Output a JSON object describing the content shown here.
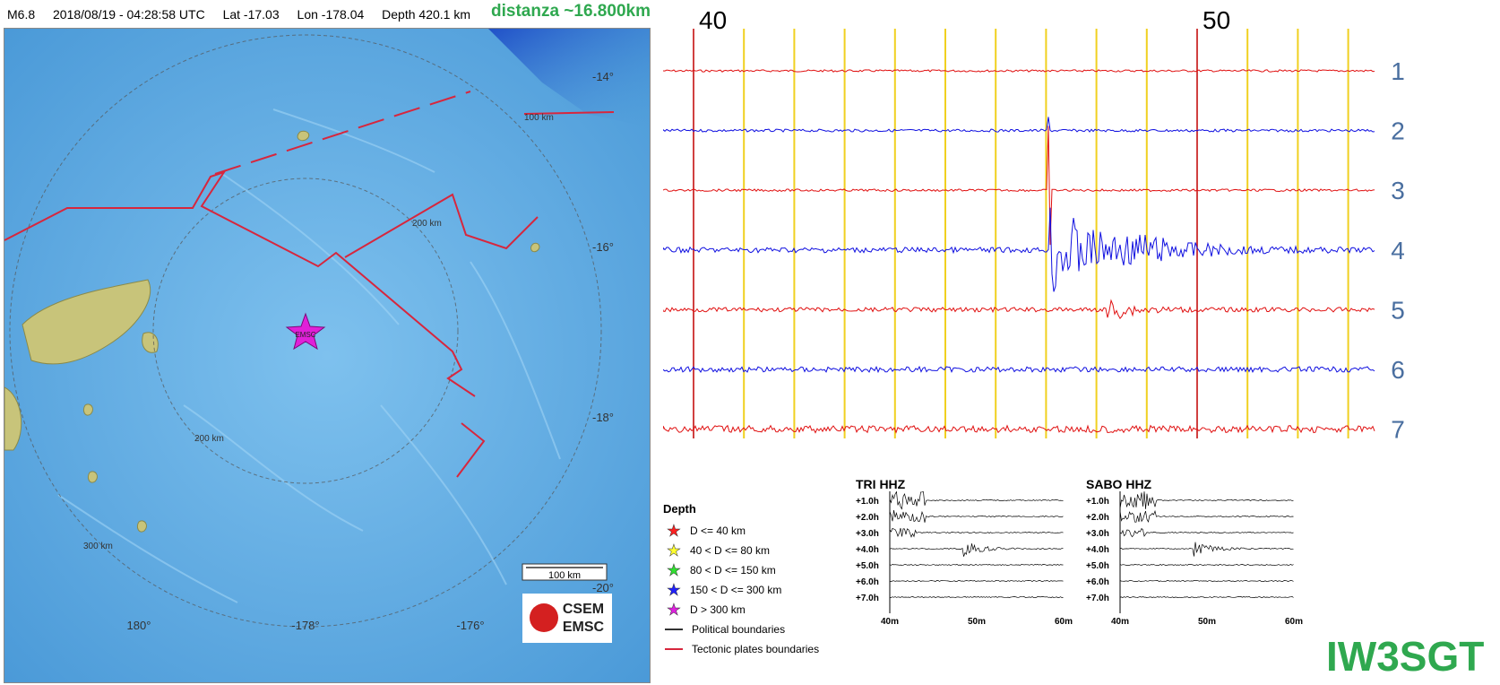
{
  "header": {
    "magnitude": "M6.8",
    "datetime": "2018/08/19 - 04:28:58 UTC",
    "lat": "Lat -17.03",
    "lon": "Lon -178.04",
    "depth": "Depth 420.1 km",
    "distance": "distanza ~16.800km"
  },
  "map": {
    "lat_labels": [
      "-14°",
      "-16°",
      "-18°",
      "-20°"
    ],
    "lon_labels": [
      "180°",
      "-178°",
      "-176°"
    ],
    "ring_labels": [
      "100 km",
      "200 km",
      "200 km",
      "300 km"
    ],
    "epicenter_label": "EMSC",
    "scale_label": "100 km",
    "logo_top": "CSEM",
    "logo_bottom": "EMSC",
    "colors": {
      "ocean": "#5aa8e0",
      "tectonic": "#d7263d",
      "epicenter": "#e020d8"
    }
  },
  "seismogram": {
    "minute_labels": [
      "40",
      "50"
    ],
    "trace_labels": [
      "1",
      "2",
      "3",
      "4",
      "5",
      "6",
      "7"
    ],
    "colors": {
      "red": "#e01010",
      "blue": "#1010e0",
      "grid": "#f0d020",
      "major": "#c00000"
    }
  },
  "legend": {
    "title": "Depth",
    "items": [
      {
        "label": "D <= 40 km",
        "color": "#ff2020"
      },
      {
        "label": "40 < D <= 80 km",
        "color": "#ffff30"
      },
      {
        "label": "80 < D <= 150 km",
        "color": "#30e030"
      },
      {
        "label": "150 < D <= 300 km",
        "color": "#2020ff"
      },
      {
        "label": "D > 300 km",
        "color": "#e020e0"
      }
    ],
    "boundaries": [
      {
        "label": "Political boundaries",
        "color": "#333333"
      },
      {
        "label": "Tectonic plates boundaries",
        "color": "#d7263d"
      }
    ]
  },
  "helicorders": [
    {
      "title": "TRI HHZ",
      "rows": [
        "+1.0h",
        "+2.0h",
        "+3.0h",
        "+4.0h",
        "+5.0h",
        "+6.0h",
        "+7.0h"
      ],
      "xlabels": [
        "40m",
        "50m",
        "60m"
      ]
    },
    {
      "title": "SABO HHZ",
      "rows": [
        "+1.0h",
        "+2.0h",
        "+3.0h",
        "+4.0h",
        "+5.0h",
        "+6.0h",
        "+7.0h"
      ],
      "xlabels": [
        "40m",
        "50m",
        "60m"
      ]
    }
  ],
  "callsign": "IW3SGT"
}
